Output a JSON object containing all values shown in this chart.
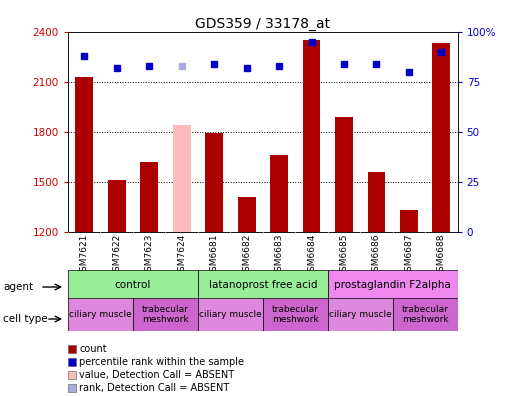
{
  "title": "GDS359 / 33178_at",
  "samples": [
    "GSM7621",
    "GSM7622",
    "GSM7623",
    "GSM7624",
    "GSM6681",
    "GSM6682",
    "GSM6683",
    "GSM6684",
    "GSM6685",
    "GSM6686",
    "GSM6687",
    "GSM6688"
  ],
  "counts": [
    2130,
    1510,
    1620,
    1840,
    1790,
    1410,
    1660,
    2350,
    1890,
    1560,
    1330,
    2330
  ],
  "absent_count": [
    false,
    false,
    false,
    true,
    false,
    false,
    false,
    false,
    false,
    false,
    false,
    false
  ],
  "percentile_ranks": [
    88,
    82,
    83,
    83,
    84,
    82,
    83,
    95,
    84,
    84,
    80,
    90
  ],
  "absent_rank": [
    false,
    false,
    false,
    true,
    false,
    false,
    false,
    false,
    false,
    false,
    false,
    false
  ],
  "ylim_left": [
    1200,
    2400
  ],
  "ylim_right": [
    0,
    100
  ],
  "yticks_left": [
    1200,
    1500,
    1800,
    2100,
    2400
  ],
  "yticks_right": [
    0,
    25,
    50,
    75,
    100
  ],
  "bar_color_normal": "#aa0000",
  "bar_color_absent": "#ffbbbb",
  "rank_color_normal": "#0000cc",
  "rank_color_absent": "#aaaadd",
  "agent_groups": [
    {
      "label": "control",
      "start": 0,
      "end": 3,
      "color": "#99ee99"
    },
    {
      "label": "latanoprost free acid",
      "start": 4,
      "end": 7,
      "color": "#99ee99"
    },
    {
      "label": "prostaglandin F2alpha",
      "start": 8,
      "end": 11,
      "color": "#ee88ee"
    }
  ],
  "cell_type_groups": [
    {
      "label": "ciliary muscle",
      "start": 0,
      "end": 1,
      "color": "#dd88dd"
    },
    {
      "label": "trabecular\nmeshwork",
      "start": 2,
      "end": 3,
      "color": "#cc66cc"
    },
    {
      "label": "ciliary muscle",
      "start": 4,
      "end": 5,
      "color": "#dd88dd"
    },
    {
      "label": "trabecular\nmeshwork",
      "start": 6,
      "end": 7,
      "color": "#cc66cc"
    },
    {
      "label": "ciliary muscle",
      "start": 8,
      "end": 9,
      "color": "#dd88dd"
    },
    {
      "label": "trabecular\nmeshwork",
      "start": 10,
      "end": 11,
      "color": "#cc66cc"
    }
  ],
  "legend_items": [
    {
      "color": "#aa0000",
      "label": "count"
    },
    {
      "color": "#0000cc",
      "label": "percentile rank within the sample"
    },
    {
      "color": "#ffbbbb",
      "label": "value, Detection Call = ABSENT"
    },
    {
      "color": "#aaaadd",
      "label": "rank, Detection Call = ABSENT"
    }
  ],
  "bar_width": 0.55,
  "rank_marker_size": 5,
  "background_color": "#ffffff",
  "left_label_color": "#cc0000",
  "right_label_color": "#0000cc",
  "xtick_bg_color": "#cccccc"
}
